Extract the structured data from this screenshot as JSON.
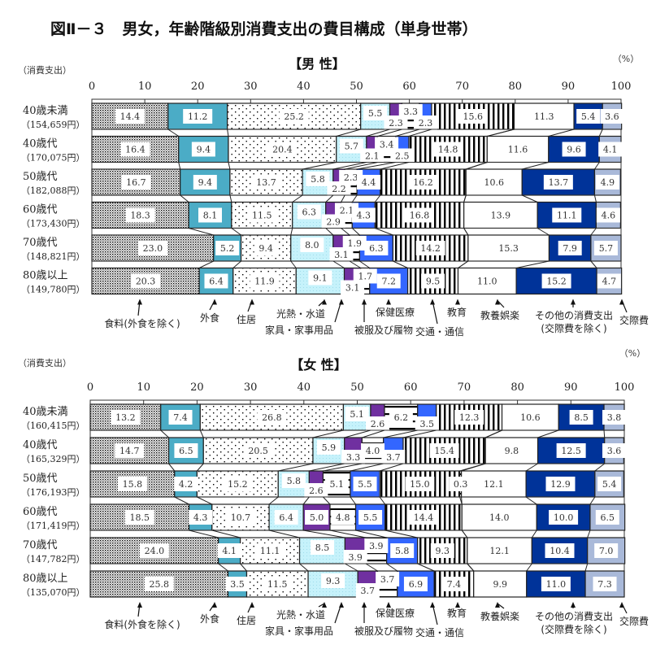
{
  "title": "図Ⅱ－３　男女，年齢階級別消費支出の費目構成（単身世帯）",
  "colors": {
    "food": "#d9d9d9",
    "dining": "#4bacc6",
    "housing": "#ffffff",
    "utilities": "#c6f2fb",
    "furniture": "#7030a0",
    "clothing": "#ffffff",
    "health": "#3366ff",
    "transport": "#ffffff",
    "education": "#ffffff",
    "leisure": "#ffffff",
    "other": "#003399",
    "social": "#a9b9d9"
  },
  "chart_data": [
    {
      "type": "bar",
      "orientation": "horizontal-stacked-100",
      "panel_title": "【男 性】",
      "unit": "（%）",
      "row_axis_label": "（消費支出）",
      "xlim": [
        0,
        100
      ],
      "xticks": [
        "0",
        "10",
        "20",
        "30",
        "40",
        "50",
        "60",
        "70",
        "80",
        "90",
        "100"
      ],
      "categories": [
        "40歳未満",
        "40歳代",
        "50歳代",
        "60歳代",
        "70歳代",
        "80歳以上"
      ],
      "category_totals": [
        "（154,659円）",
        "（170,075円）",
        "（182,088円）",
        "（173,430円）",
        "（148,821円）",
        "（149,780円）"
      ],
      "series": [
        {
          "name": "食料(外食を除く)",
          "values": [
            14.4,
            16.4,
            16.7,
            18.3,
            23.0,
            20.3
          ]
        },
        {
          "name": "外食",
          "values": [
            11.2,
            9.4,
            9.4,
            8.1,
            5.2,
            6.4
          ]
        },
        {
          "name": "住居",
          "values": [
            25.2,
            20.4,
            13.7,
            11.5,
            9.4,
            11.9
          ]
        },
        {
          "name": "光熱・水道",
          "values": [
            5.5,
            5.7,
            5.8,
            6.3,
            8.0,
            9.1
          ]
        },
        {
          "name": "家具・家事用品",
          "values": [
            2.3,
            2.1,
            2.2,
            2.9,
            3.1,
            3.1
          ]
        },
        {
          "name": "被服及び履物",
          "values": [
            3.3,
            3.4,
            2.3,
            2.1,
            1.9,
            1.7
          ]
        },
        {
          "name": "保健医療",
          "values": [
            2.3,
            2.5,
            4.4,
            4.3,
            6.3,
            7.2
          ]
        },
        {
          "name": "交通・通信",
          "values": [
            15.6,
            14.8,
            16.2,
            16.8,
            14.2,
            9.5
          ]
        },
        {
          "name": "教育",
          "values": [
            0,
            0,
            0,
            0,
            0,
            0
          ]
        },
        {
          "name": "教養娯楽",
          "values": [
            11.3,
            11.6,
            10.6,
            13.9,
            15.3,
            11.0
          ]
        },
        {
          "name": "その他の消費支出\n(交際費を除く)",
          "values": [
            5.4,
            9.6,
            13.7,
            11.1,
            7.9,
            15.2
          ]
        },
        {
          "name": "交際費",
          "values": [
            3.6,
            4.1,
            4.9,
            4.6,
            5.7,
            4.7
          ]
        }
      ],
      "value_labels": [
        [
          "14.4",
          "11.2",
          "25.2",
          "5.5",
          "2.3",
          "3.3",
          "2.3",
          "15.6",
          "",
          "11.3",
          "5.4",
          "3.6"
        ],
        [
          "16.4",
          "9.4",
          "20.4",
          "5.7",
          "2.1",
          "3.4",
          "2.5",
          "14.8",
          "",
          "11.6",
          "9.6",
          "4.1"
        ],
        [
          "16.7",
          "9.4",
          "13.7",
          "5.8",
          "2.2",
          "2.3",
          "4.4",
          "16.2",
          "",
          "10.6",
          "13.7",
          "4.9"
        ],
        [
          "18.3",
          "8.1",
          "11.5",
          "6.3",
          "2.9",
          "2.1",
          "4.3",
          "16.8",
          "",
          "13.9",
          "11.1",
          "4.6"
        ],
        [
          "23.0",
          "5.2",
          "9.4",
          "8.0",
          "3.1",
          "1.9",
          "6.3",
          "14.2",
          "",
          "15.3",
          "7.9",
          "5.7"
        ],
        [
          "20.3",
          "6.4",
          "11.9",
          "9.1",
          "3.1",
          "1.7",
          "7.2",
          "9.5",
          "",
          "11.0",
          "15.2",
          "4.7"
        ]
      ],
      "legend_labels": [
        "食料(外食を除く)",
        "外食",
        "住居",
        "光熱・水道",
        "家具・家事用品",
        "被服及び履物",
        "保健医療",
        "交通・通信",
        "教育",
        "教養娯楽",
        "その他の消費支出",
        "(交際費を除く)",
        "交際費"
      ]
    },
    {
      "type": "bar",
      "orientation": "horizontal-stacked-100",
      "panel_title": "【女 性】",
      "unit": "（%）",
      "row_axis_label": "（消費支出）",
      "xlim": [
        0,
        100
      ],
      "xticks": [
        "0",
        "10",
        "20",
        "30",
        "40",
        "50",
        "60",
        "70",
        "80",
        "90",
        "100"
      ],
      "categories": [
        "40歳未満",
        "40歳代",
        "50歳代",
        "60歳代",
        "70歳代",
        "80歳以上"
      ],
      "category_totals": [
        "（160,415円）",
        "（165,329円）",
        "（176,193円）",
        "（171,419円）",
        "（147,782円）",
        "（135,070円）"
      ],
      "series": [
        {
          "name": "食料(外食を除く)",
          "values": [
            13.2,
            14.7,
            15.8,
            18.5,
            24.0,
            25.8
          ]
        },
        {
          "name": "外食",
          "values": [
            7.4,
            6.5,
            4.2,
            4.3,
            4.1,
            3.5
          ]
        },
        {
          "name": "住居",
          "values": [
            26.8,
            20.5,
            15.2,
            10.7,
            11.1,
            11.5
          ]
        },
        {
          "name": "光熱・水道",
          "values": [
            5.1,
            5.9,
            5.8,
            6.4,
            8.5,
            9.3
          ]
        },
        {
          "name": "家具・家事用品",
          "values": [
            2.6,
            3.3,
            2.6,
            5.0,
            3.9,
            3.7
          ]
        },
        {
          "name": "被服及び履物",
          "values": [
            6.2,
            4.0,
            5.1,
            4.8,
            3.9,
            3.7
          ]
        },
        {
          "name": "保健医療",
          "values": [
            3.5,
            3.7,
            5.5,
            5.5,
            5.8,
            6.9
          ]
        },
        {
          "name": "交通・通信",
          "values": [
            12.3,
            15.4,
            15.0,
            14.4,
            9.3,
            7.4
          ]
        },
        {
          "name": "教育",
          "values": [
            0,
            0,
            0.3,
            0,
            0,
            0
          ]
        },
        {
          "name": "教養娯楽",
          "values": [
            10.6,
            9.8,
            12.1,
            14.0,
            12.1,
            9.9
          ]
        },
        {
          "name": "その他の消費支出\n(交際費を除く)",
          "values": [
            8.5,
            12.5,
            12.9,
            10.0,
            10.4,
            11.0
          ]
        },
        {
          "name": "交際費",
          "values": [
            3.8,
            3.6,
            5.4,
            6.5,
            7.0,
            7.3
          ]
        }
      ],
      "value_labels": [
        [
          "13.2",
          "7.4",
          "26.8",
          "5.1",
          "2.6",
          "6.2",
          "3.5",
          "12.3",
          "",
          "10.6",
          "8.5",
          "3.8"
        ],
        [
          "14.7",
          "6.5",
          "20.5",
          "5.9",
          "3.3",
          "4.0",
          "3.7",
          "15.4",
          "",
          "9.8",
          "12.5",
          "3.6"
        ],
        [
          "15.8",
          "4.2",
          "15.2",
          "5.8",
          "2.6",
          "5.1",
          "5.5",
          "15.0",
          "0.3",
          "12.1",
          "12.9",
          "5.4"
        ],
        [
          "18.5",
          "4.3",
          "10.7",
          "6.4",
          "5.0",
          "4.8",
          "5.5",
          "14.4",
          "",
          "14.0",
          "10.0",
          "6.5"
        ],
        [
          "24.0",
          "4.1",
          "11.1",
          "8.5",
          "3.9",
          "3.9",
          "5.8",
          "9.3",
          "",
          "12.1",
          "10.4",
          "7.0"
        ],
        [
          "25.8",
          "3.5",
          "11.5",
          "9.3",
          "3.7",
          "3.7",
          "6.9",
          "7.4",
          "",
          "9.9",
          "11.0",
          "7.3"
        ]
      ],
      "legend_labels": [
        "食料(外食を除く)",
        "外食",
        "住居",
        "光熱・水道",
        "家具・家事用品",
        "被服及び履物",
        "保健医療",
        "交通・通信",
        "教育",
        "教養娯楽",
        "その他の消費支出",
        "(交際費を除く)",
        "交際費"
      ]
    }
  ]
}
